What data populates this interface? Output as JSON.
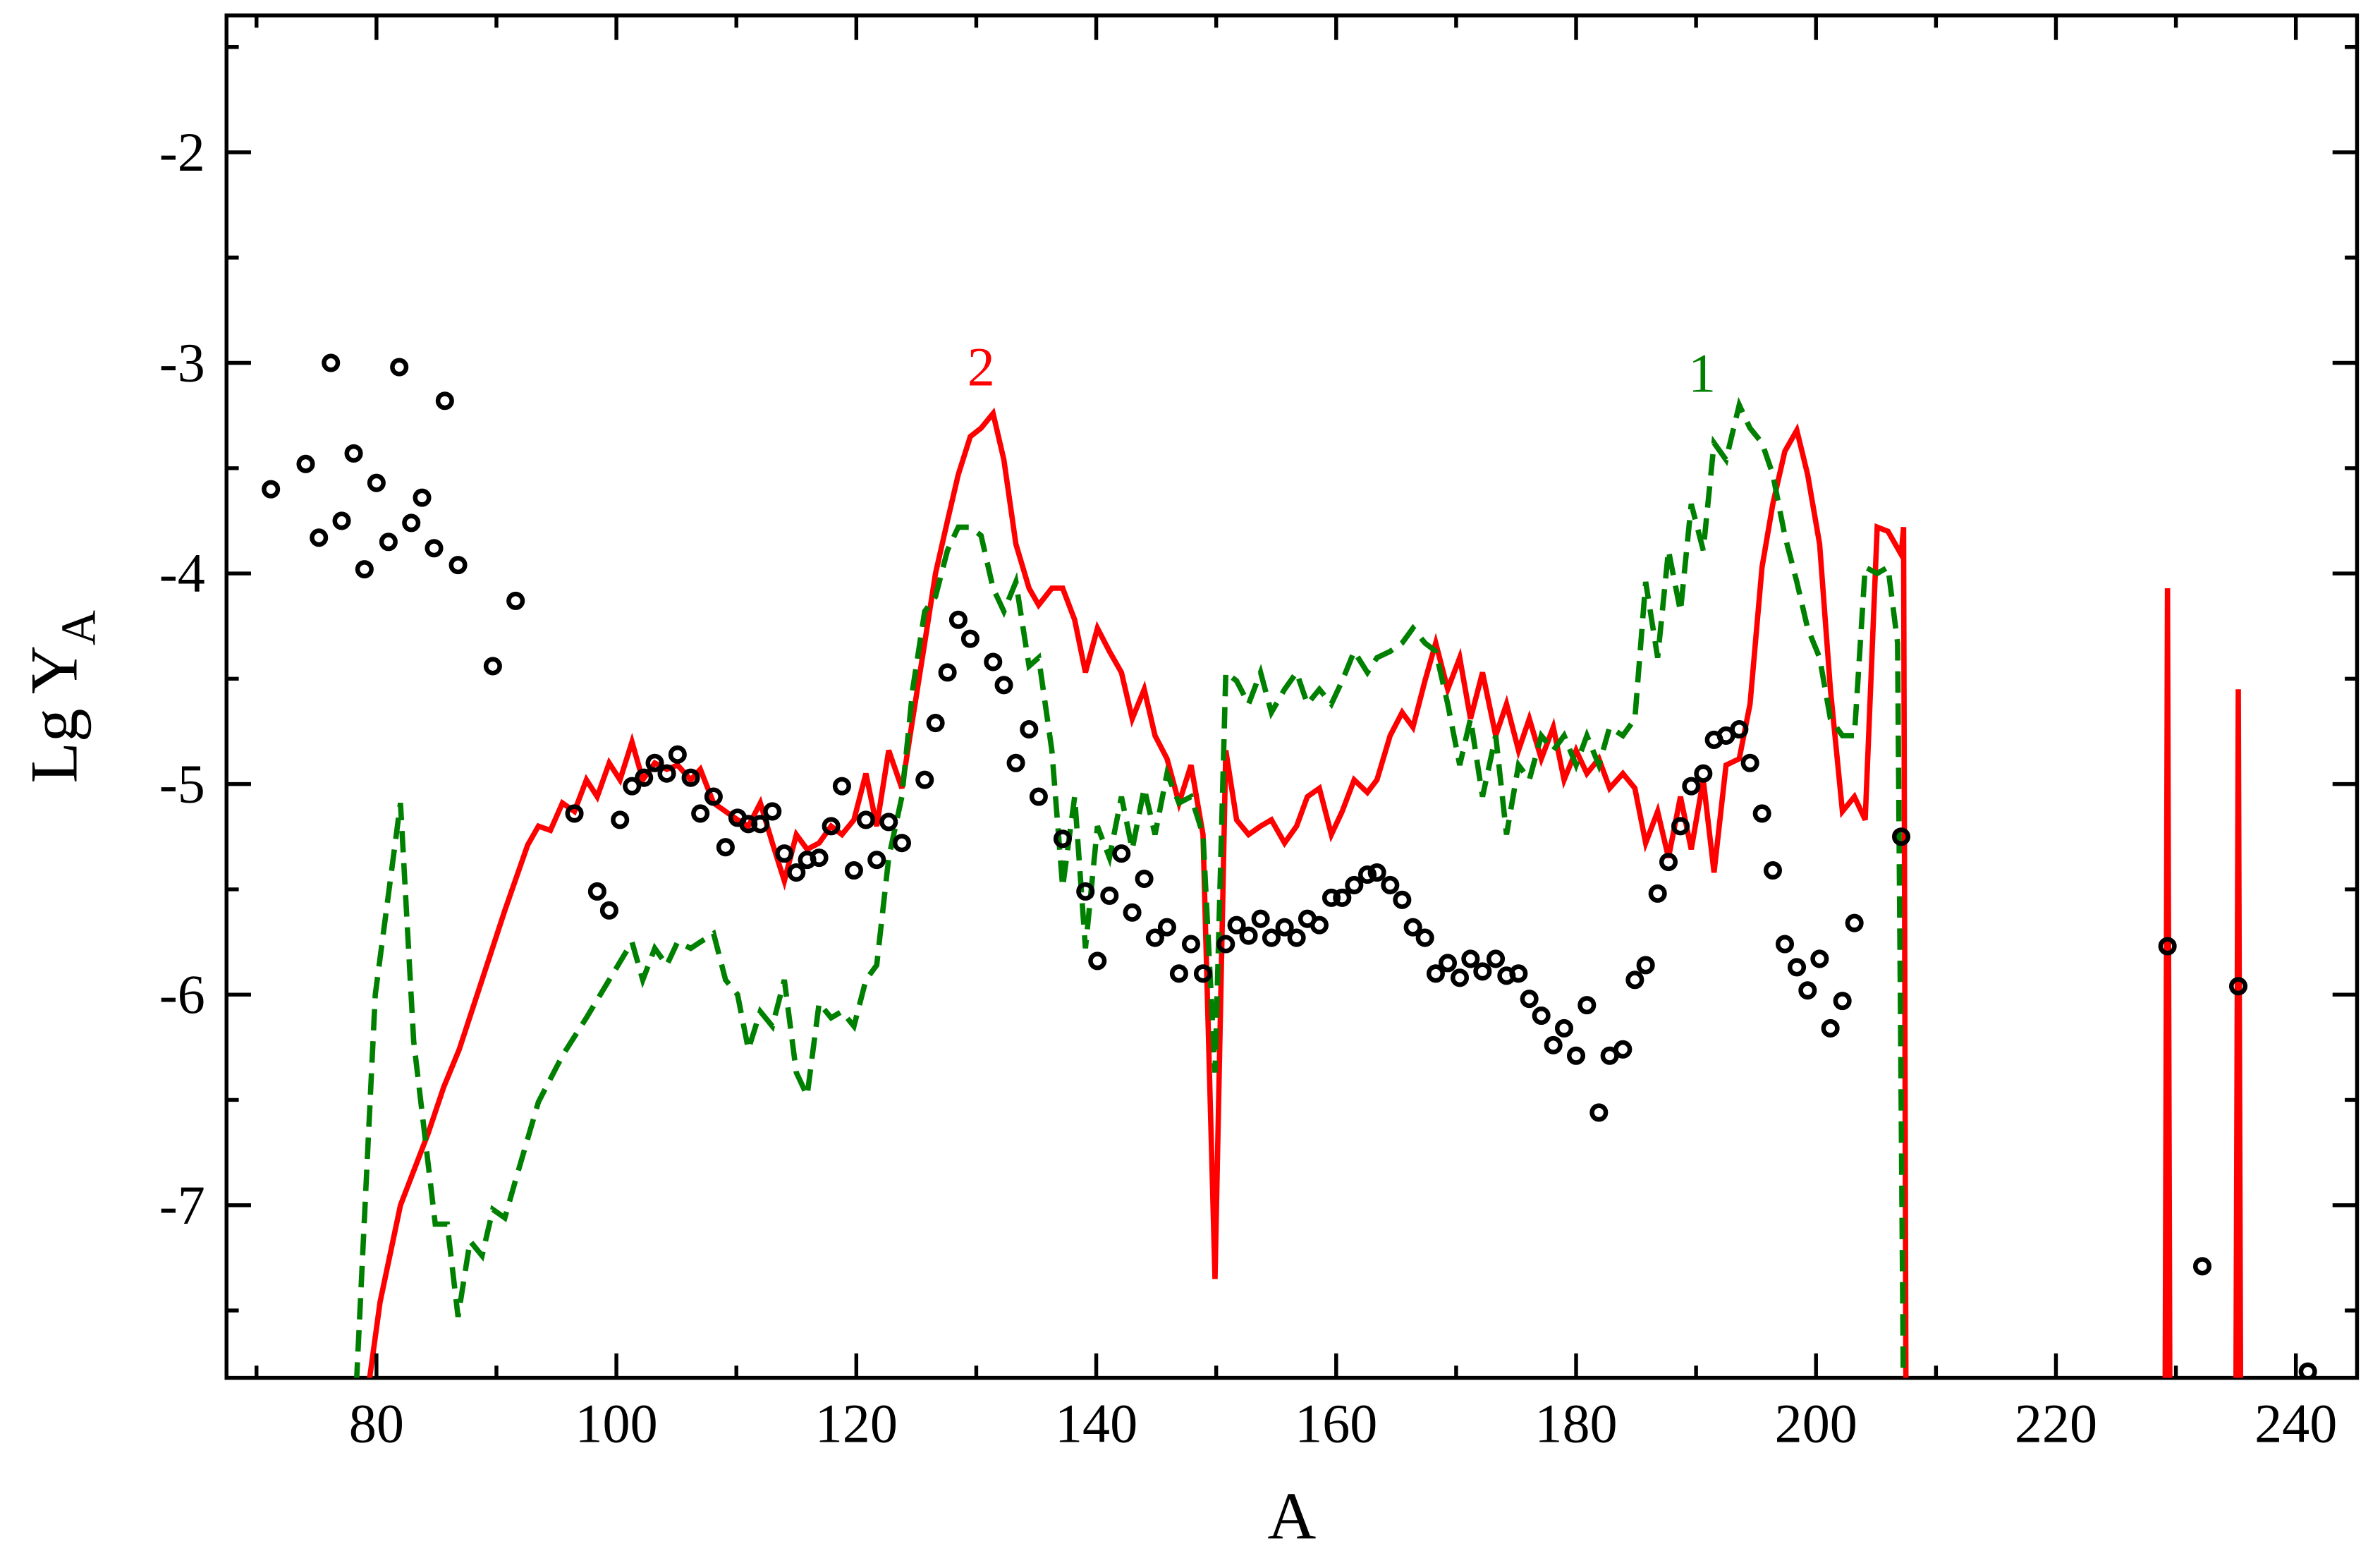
{
  "chart_data": {
    "type": "line",
    "xlabel": "A",
    "ylabel": {
      "text": "Lg Y",
      "sub": "A"
    },
    "xlim": [
      67.5,
      245.1
    ],
    "ylim": [
      -7.82,
      -1.35
    ],
    "xticks": [
      80,
      100,
      120,
      140,
      160,
      180,
      200,
      220,
      240
    ],
    "yticks": [
      -7,
      -6,
      -5,
      -4,
      -3,
      -2
    ],
    "xminor": [
      70,
      90,
      110,
      130,
      150,
      170,
      190,
      210,
      230
    ],
    "yminor": [
      -7.5,
      -6.5,
      -5.5,
      -4.5,
      -3.5,
      -2.5,
      -1.5
    ],
    "annotations": [
      {
        "text": "2",
        "x": 130.4,
        "y": -3.02,
        "color": "#ff0000"
      },
      {
        "text": "1",
        "x": 190.5,
        "y": -3.05,
        "color": "#008000"
      }
    ],
    "series": [
      {
        "type": "scatter",
        "color": "#000000",
        "x": [
          71.2,
          74.1,
          75.2,
          76.2,
          77.1,
          78.1,
          79.0,
          80.0,
          81.0,
          81.9,
          82.9,
          83.8,
          84.8,
          85.7,
          86.8,
          89.7,
          91.6,
          96.5,
          98.4,
          99.4,
          100.3,
          101.3,
          102.3,
          103.2,
          104.2,
          105.1,
          106.2,
          107.0,
          108.1,
          109.1,
          110.1,
          111.0,
          112.0,
          113.0,
          114.0,
          115.0,
          115.9,
          116.9,
          117.9,
          118.8,
          119.8,
          120.8,
          121.7,
          122.7,
          123.8,
          125.7,
          126.6,
          127.6,
          128.5,
          129.5,
          131.4,
          132.3,
          133.3,
          134.4,
          135.2,
          137.2,
          139.1,
          140.1,
          141.1,
          142.1,
          143.0,
          144.0,
          144.9,
          145.9,
          146.9,
          147.9,
          148.9,
          150.8,
          151.7,
          152.7,
          153.7,
          154.6,
          155.7,
          156.7,
          157.6,
          158.6,
          159.6,
          160.5,
          161.5,
          162.6,
          163.4,
          164.5,
          165.5,
          166.4,
          167.4,
          168.3,
          169.3,
          170.3,
          171.2,
          172.2,
          173.3,
          174.2,
          175.2,
          176.1,
          177.1,
          178.1,
          179.0,
          180.0,
          180.9,
          181.9,
          182.8,
          183.9,
          184.9,
          185.8,
          186.8,
          187.7,
          188.7,
          189.6,
          190.6,
          191.5,
          192.5,
          193.6,
          194.5,
          195.5,
          196.4,
          197.4,
          198.4,
          199.3,
          200.3,
          201.2,
          202.2,
          203.2,
          207.1,
          229.3,
          235.2,
          232.2,
          241.0
        ],
        "values": [
          -3.6,
          -3.48,
          -3.83,
          -3.0,
          -3.75,
          -3.43,
          -3.98,
          -3.57,
          -3.85,
          -3.02,
          -3.76,
          -3.64,
          -3.88,
          -3.18,
          -3.96,
          -4.44,
          -4.13,
          -5.14,
          -5.51,
          -5.6,
          -5.17,
          -5.01,
          -4.97,
          -4.9,
          -4.95,
          -4.86,
          -4.97,
          -5.14,
          -5.06,
          -5.3,
          -5.16,
          -5.19,
          -5.19,
          -5.13,
          -5.33,
          -5.42,
          -5.36,
          -5.35,
          -5.2,
          -5.01,
          -5.41,
          -5.17,
          -5.36,
          -5.18,
          -5.28,
          -4.98,
          -4.71,
          -4.47,
          -4.22,
          -4.31,
          -4.42,
          -4.53,
          -4.9,
          -4.74,
          -5.06,
          -5.26,
          -5.51,
          -5.84,
          -5.53,
          -5.33,
          -5.61,
          -5.45,
          -5.73,
          -5.68,
          -5.9,
          -5.76,
          -5.9,
          -5.76,
          -5.67,
          -5.72,
          -5.64,
          -5.73,
          -5.68,
          -5.73,
          -5.64,
          -5.67,
          -5.54,
          -5.54,
          -5.48,
          -5.43,
          -5.42,
          -5.48,
          -5.55,
          -5.68,
          -5.73,
          -5.9,
          -5.85,
          -5.92,
          -5.83,
          -5.89,
          -5.83,
          -5.91,
          -5.9,
          -6.02,
          -6.1,
          -6.24,
          -6.16,
          -6.29,
          -6.05,
          -6.56,
          -6.29,
          -6.26,
          -5.93,
          -5.86,
          -5.52,
          -5.37,
          -5.2,
          -5.01,
          -4.95,
          -4.79,
          -4.77,
          -4.74,
          -4.9,
          -5.14,
          -5.41,
          -5.76,
          -5.87,
          -5.98,
          -5.83,
          -6.16,
          -6.03,
          -5.66,
          -5.25,
          -5.77,
          -5.96,
          -7.29,
          -7.79
        ]
      },
      {
        "type": "line",
        "color": "#ff0000",
        "x": [
          79.0,
          80.3,
          82.0,
          84.3,
          85.6,
          86.9,
          88.8,
          90.7,
          92.6,
          93.5,
          94.5,
          95.5,
          96.5,
          97.5,
          98.4,
          99.4,
          100.3,
          101.3,
          102.2,
          103.2,
          104.2,
          105.1,
          106.2,
          107.0,
          108.1,
          109.1,
          110.1,
          111.0,
          112.0,
          113.0,
          114.0,
          115.0,
          115.9,
          116.9,
          117.9,
          118.8,
          119.8,
          120.8,
          121.7,
          122.7,
          123.8,
          124.7,
          125.7,
          126.6,
          127.6,
          128.5,
          129.5,
          130.4,
          131.4,
          132.3,
          133.3,
          134.4,
          135.2,
          136.3,
          137.2,
          138.2,
          139.1,
          140.1,
          141.1,
          142.1,
          143.0,
          144.0,
          144.9,
          145.9,
          146.9,
          147.9,
          148.9,
          149.9,
          150.8,
          151.7,
          152.7,
          153.7,
          154.6,
          155.7,
          156.7,
          157.6,
          158.6,
          159.6,
          160.5,
          161.5,
          162.6,
          163.4,
          164.5,
          165.5,
          166.4,
          167.4,
          168.3,
          169.3,
          170.3,
          171.2,
          172.2,
          173.3,
          174.2,
          175.2,
          176.1,
          177.1,
          178.1,
          179.0,
          180.0,
          180.9,
          181.9,
          182.8,
          183.9,
          184.9,
          185.8,
          186.8,
          187.7,
          188.7,
          189.6,
          190.6,
          191.5,
          192.5,
          193.6,
          194.5,
          195.5,
          196.4,
          197.4,
          198.4,
          199.3,
          200.3,
          201.2,
          202.2,
          203.2,
          204.1,
          205.1,
          206.0,
          207.1,
          207.3,
          207.5,
          null,
          229.1,
          229.3,
          229.5,
          null,
          235.0,
          235.2,
          235.4
        ],
        "values": [
          -8.0,
          -7.46,
          -7.0,
          -6.66,
          -6.44,
          -6.26,
          -5.93,
          -5.6,
          -5.29,
          -5.2,
          -5.22,
          -5.09,
          -5.13,
          -4.98,
          -5.06,
          -4.9,
          -4.98,
          -4.8,
          -4.98,
          -4.9,
          -4.93,
          -4.91,
          -4.98,
          -4.93,
          -5.09,
          -5.13,
          -5.17,
          -5.2,
          -5.09,
          -5.28,
          -5.46,
          -5.24,
          -5.31,
          -5.28,
          -5.2,
          -5.24,
          -5.17,
          -4.95,
          -5.2,
          -4.84,
          -5.02,
          -4.69,
          -4.33,
          -4.0,
          -3.75,
          -3.53,
          -3.35,
          -3.31,
          -3.24,
          -3.46,
          -3.86,
          -4.07,
          -4.15,
          -4.07,
          -4.07,
          -4.22,
          -4.47,
          -4.26,
          -4.37,
          -4.47,
          -4.69,
          -4.55,
          -4.77,
          -4.88,
          -5.09,
          -4.91,
          -5.24,
          -7.35,
          -4.84,
          -5.17,
          -5.24,
          -5.2,
          -5.17,
          -5.28,
          -5.2,
          -5.06,
          -5.02,
          -5.24,
          -5.13,
          -4.98,
          -5.04,
          -4.98,
          -4.77,
          -4.66,
          -4.73,
          -4.51,
          -4.33,
          -4.55,
          -4.4,
          -4.69,
          -4.47,
          -4.77,
          -4.62,
          -4.84,
          -4.69,
          -4.88,
          -4.73,
          -4.98,
          -4.84,
          -4.95,
          -4.88,
          -5.02,
          -4.95,
          -5.02,
          -5.28,
          -5.13,
          -5.35,
          -5.06,
          -5.31,
          -4.98,
          -5.42,
          -4.91,
          -4.88,
          -4.62,
          -3.97,
          -3.67,
          -3.42,
          -3.32,
          -3.53,
          -3.86,
          -4.55,
          -5.13,
          -5.06,
          -5.17,
          -3.78,
          -3.8,
          -3.91,
          -3.78,
          -8.0,
          null,
          -8.0,
          -4.07,
          -8.0,
          null,
          -8.0,
          -4.55,
          -8.0
        ]
      },
      {
        "type": "line",
        "color": "#008000",
        "dash": true,
        "x": [
          78.2,
          79.9,
          82.0,
          83.1,
          84.9,
          85.9,
          86.8,
          87.8,
          88.8,
          89.7,
          90.7,
          91.6,
          93.5,
          95.5,
          97.5,
          99.4,
          101.3,
          102.2,
          103.2,
          104.2,
          105.1,
          106.2,
          107.0,
          108.1,
          109.1,
          110.1,
          111.0,
          112.0,
          113.0,
          114.0,
          115.0,
          115.9,
          116.9,
          117.9,
          118.8,
          119.8,
          120.8,
          121.7,
          122.7,
          123.8,
          124.7,
          125.7,
          126.6,
          127.6,
          128.5,
          129.5,
          130.4,
          131.4,
          132.3,
          133.3,
          134.4,
          135.2,
          136.3,
          137.2,
          138.2,
          139.1,
          140.1,
          141.1,
          142.1,
          143.0,
          144.0,
          144.9,
          145.9,
          146.9,
          147.9,
          148.9,
          149.9,
          150.8,
          151.7,
          152.7,
          153.7,
          154.6,
          155.7,
          156.7,
          157.6,
          158.6,
          159.6,
          160.5,
          161.5,
          162.6,
          163.4,
          164.5,
          165.5,
          166.4,
          167.4,
          168.3,
          169.3,
          170.3,
          171.2,
          172.2,
          173.3,
          174.2,
          175.2,
          176.1,
          177.1,
          178.1,
          179.0,
          180.0,
          180.9,
          181.9,
          182.8,
          183.9,
          184.9,
          185.8,
          186.8,
          187.7,
          188.7,
          189.6,
          190.6,
          191.5,
          192.5,
          193.6,
          194.5,
          195.5,
          196.4,
          197.4,
          198.4,
          199.3,
          200.3,
          201.2,
          202.2,
          203.2,
          204.1,
          205.1,
          206.0,
          206.8,
          207.3
        ],
        "values": [
          -8.0,
          -6.0,
          -5.09,
          -6.22,
          -7.09,
          -7.09,
          -7.53,
          -7.17,
          -7.24,
          -7.02,
          -7.06,
          -6.88,
          -6.51,
          -6.29,
          -6.11,
          -5.93,
          -5.75,
          -5.93,
          -5.78,
          -5.86,
          -5.75,
          -5.78,
          -5.75,
          -5.71,
          -5.93,
          -6.0,
          -6.26,
          -6.08,
          -6.15,
          -5.93,
          -6.37,
          -6.48,
          -6.04,
          -6.11,
          -6.08,
          -6.15,
          -5.93,
          -5.86,
          -5.35,
          -5.06,
          -4.55,
          -4.18,
          -4.11,
          -3.89,
          -3.78,
          -3.78,
          -3.82,
          -4.07,
          -4.18,
          -4.04,
          -4.44,
          -4.4,
          -4.84,
          -5.49,
          -5.06,
          -5.78,
          -5.2,
          -5.35,
          -5.06,
          -5.31,
          -5.02,
          -5.24,
          -4.95,
          -5.09,
          -5.06,
          -5.24,
          -6.37,
          -4.47,
          -4.51,
          -4.62,
          -4.47,
          -4.66,
          -4.55,
          -4.47,
          -4.62,
          -4.55,
          -4.62,
          -4.51,
          -4.37,
          -4.47,
          -4.4,
          -4.37,
          -4.33,
          -4.26,
          -4.33,
          -4.37,
          -4.62,
          -4.91,
          -4.69,
          -5.06,
          -4.77,
          -5.24,
          -4.91,
          -4.98,
          -4.77,
          -4.84,
          -4.77,
          -4.91,
          -4.77,
          -4.91,
          -4.73,
          -4.77,
          -4.69,
          -4.04,
          -4.4,
          -3.89,
          -4.18,
          -3.67,
          -3.89,
          -3.38,
          -3.46,
          -3.2,
          -3.31,
          -3.38,
          -3.53,
          -3.82,
          -4.04,
          -4.26,
          -4.4,
          -4.69,
          -4.77,
          -4.77,
          -3.97,
          -4.0,
          -3.97,
          -4.33,
          -8.0
        ]
      }
    ]
  }
}
